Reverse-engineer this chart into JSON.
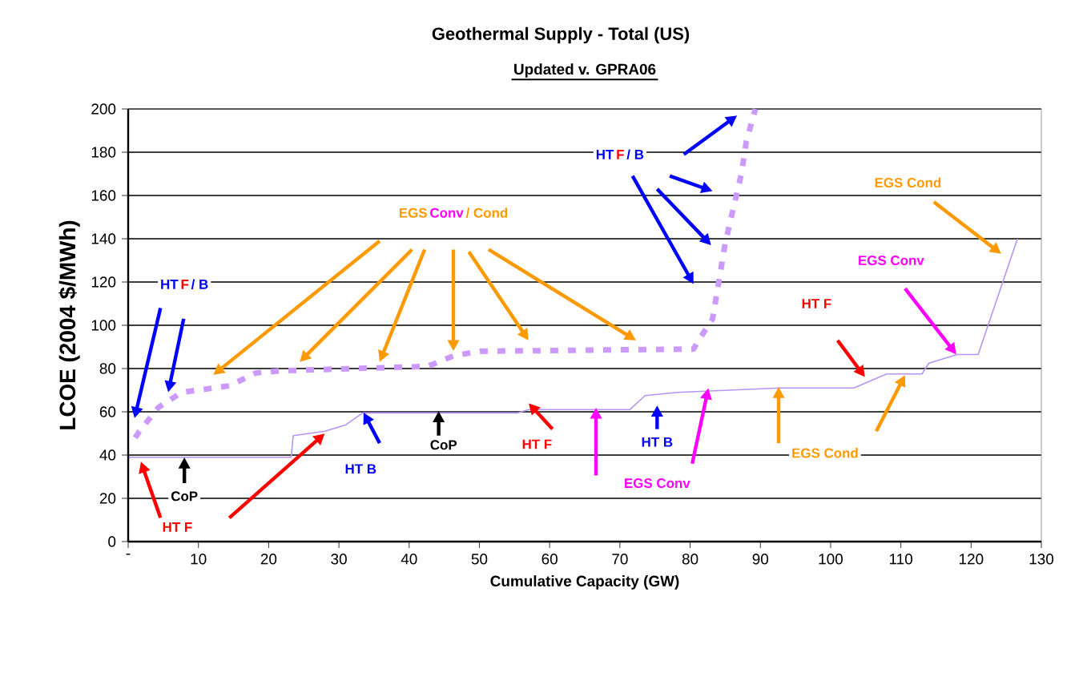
{
  "chart_data": {
    "type": "line",
    "title": "Geothermal Supply - Total (US)",
    "subtitle": "Updated v. GPRA06",
    "xlabel": "Cumulative Capacity (GW)",
    "ylabel": "LCOE (2004 $/MWh)",
    "xlim": [
      0,
      130
    ],
    "ylim": [
      0,
      200
    ],
    "xticks": [
      {
        "value": 0,
        "label": "-"
      },
      10,
      20,
      30,
      40,
      50,
      60,
      70,
      80,
      90,
      100,
      110,
      120,
      130
    ],
    "yticks": [
      0,
      20,
      40,
      60,
      80,
      100,
      120,
      140,
      160,
      180,
      200
    ],
    "grid": "y",
    "series": [
      {
        "color": "#cc99ff",
        "line_style": "dashed",
        "x": [
          1,
          1.6,
          4.3,
          7.6,
          14.4,
          18.2,
          22,
          42.6,
          46.4,
          50.2,
          80.5,
          81,
          83.2,
          85,
          87.3,
          88,
          89.3
        ],
        "values": [
          48,
          51,
          62,
          69,
          72,
          78,
          79,
          81,
          86,
          88,
          89,
          92,
          103,
          138,
          170,
          185,
          200
        ]
      },
      {
        "color": "#b694f2",
        "line_style": "solid",
        "x": [
          0,
          23.2,
          23.5,
          28,
          31,
          33.4,
          55.5,
          57,
          71.4,
          73.6,
          78.2,
          92.8,
          103.3,
          108,
          113,
          114,
          118,
          121,
          126.6
        ],
        "values": [
          39,
          39,
          49,
          51,
          54,
          59.5,
          59.5,
          61,
          61,
          67.5,
          69,
          71,
          71,
          77.5,
          77.5,
          82.5,
          86.5,
          86.5,
          140
        ]
      }
    ],
    "annotations": [
      "HT",
      "F",
      "/ B",
      "EGS",
      "Conv",
      "/ Cond",
      "HT",
      "F",
      "/ B",
      "EGS Cond",
      "EGS Conv",
      "HT F",
      "EGS Cond",
      "EGS Conv",
      "HT B",
      "HT F",
      "CoP",
      "HT B",
      "CoP",
      "HT F"
    ]
  }
}
